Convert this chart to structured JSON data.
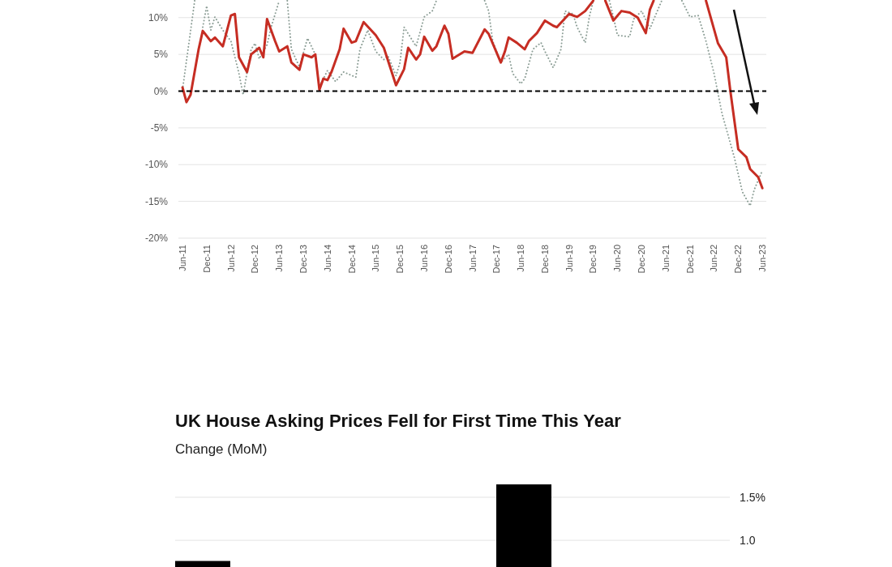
{
  "chart_data": [
    {
      "type": "line",
      "xlim": [
        "2011-05",
        "2023-07"
      ],
      "ylim": [
        -20,
        12.4
      ],
      "xticks": [
        {
          "value": "2011-06",
          "label": "Jun-11"
        },
        {
          "value": "2011-12",
          "label": "Dec-11"
        },
        {
          "value": "2012-06",
          "label": "Jun-12"
        },
        {
          "value": "2012-12",
          "label": "Dec-12"
        },
        {
          "value": "2013-06",
          "label": "Jun-13"
        },
        {
          "value": "2013-12",
          "label": "Dec-13"
        },
        {
          "value": "2014-06",
          "label": "Jun-14"
        },
        {
          "value": "2014-12",
          "label": "Dec-14"
        },
        {
          "value": "2015-06",
          "label": "Jun-15"
        },
        {
          "value": "2015-12",
          "label": "Dec-15"
        },
        {
          "value": "2016-06",
          "label": "Jun-16"
        },
        {
          "value": "2016-12",
          "label": "Dec-16"
        },
        {
          "value": "2017-06",
          "label": "Jun-17"
        },
        {
          "value": "2017-12",
          "label": "Dec-17"
        },
        {
          "value": "2018-06",
          "label": "Jun-18"
        },
        {
          "value": "2018-12",
          "label": "Dec-18"
        },
        {
          "value": "2019-06",
          "label": "Jun-19"
        },
        {
          "value": "2019-12",
          "label": "Dec-19"
        },
        {
          "value": "2020-06",
          "label": "Jun-20"
        },
        {
          "value": "2020-12",
          "label": "Dec-20"
        },
        {
          "value": "2021-06",
          "label": "Jun-21"
        },
        {
          "value": "2021-12",
          "label": "Dec-21"
        },
        {
          "value": "2022-06",
          "label": "Jun-22"
        },
        {
          "value": "2022-12",
          "label": "Dec-22"
        },
        {
          "value": "2023-06",
          "label": "Jun-23"
        }
      ],
      "yticks": [
        {
          "value": -20,
          "label": "-20%"
        },
        {
          "value": -15,
          "label": "-15%"
        },
        {
          "value": -10,
          "label": "-10%"
        },
        {
          "value": -5,
          "label": "-5%"
        },
        {
          "value": 0,
          "label": "0%"
        },
        {
          "value": 5,
          "label": "5%"
        },
        {
          "value": 10,
          "label": "10%"
        }
      ],
      "grid": "y",
      "ref_lines": [
        {
          "axis": "y",
          "value": 0,
          "color": "#000000",
          "line_style": "dashed"
        }
      ],
      "series": [
        {
          "color": "#8c9e96",
          "line_style": "dotted",
          "x": [
            "2011-06",
            "2011-09",
            "2011-10",
            "2011-11",
            "2011-12",
            "2012-01",
            "2012-02",
            "2012-04",
            "2012-06",
            "2012-08",
            "2012-09",
            "2012-11",
            "2012-12",
            "2013-01",
            "2013-03",
            "2013-04",
            "2013-06",
            "2013-07",
            "2013-08",
            "2013-09",
            "2013-11",
            "2014-01",
            "2014-03",
            "2014-04",
            "2014-06",
            "2014-08",
            "2014-10",
            "2015-01",
            "2015-02",
            "2015-04",
            "2015-06",
            "2015-08",
            "2015-09",
            "2015-11",
            "2015-12",
            "2016-01",
            "2016-04",
            "2016-06",
            "2016-08",
            "2016-09",
            "2016-10",
            "2017-09",
            "2017-10",
            "2017-11",
            "2018-01",
            "2018-03",
            "2018-04",
            "2018-06",
            "2018-07",
            "2018-09",
            "2018-11",
            "2018-12",
            "2019-02",
            "2019-04",
            "2019-05",
            "2019-07",
            "2019-08",
            "2019-10",
            "2019-11",
            "2019-12",
            "2020-01",
            "2020-04",
            "2020-05",
            "2020-06",
            "2020-09",
            "2020-10",
            "2020-12",
            "2021-02",
            "2021-05",
            "2021-06",
            "2021-10",
            "2021-12",
            "2022-02",
            "2022-04",
            "2022-06",
            "2022-08",
            "2022-11",
            "2023-01",
            "2023-03",
            "2023-04",
            "2023-06"
          ],
          "values": [
            0.2,
            12.3,
            null,
            8.7,
            11.6,
            8.3,
            10.1,
            8.3,
            6.8,
            2.4,
            -0.5,
            5.7,
            6.5,
            4.4,
            6.3,
            8.7,
            12.3,
            null,
            12.3,
            5.7,
            3.3,
            7.2,
            5.0,
            0.6,
            2.8,
            1.3,
            2.6,
            1.9,
            5.7,
            8.3,
            5.4,
            4.3,
            4.8,
            2.1,
            3.9,
            8.7,
            6.1,
            10.1,
            10.9,
            12.3,
            null,
            12.3,
            10.9,
            6.8,
            3.9,
            5.0,
            2.4,
            1.0,
            1.7,
            5.7,
            6.6,
            5.4,
            3.2,
            5.7,
            10.9,
            10.5,
            8.7,
            6.6,
            10.1,
            12.3,
            null,
            12.3,
            10.1,
            7.6,
            7.4,
            9.8,
            10.9,
            8.5,
            12.3,
            null,
            12.3,
            10.1,
            10.3,
            6.8,
            2.4,
            -3.1,
            -9.0,
            -13.7,
            -15.6,
            -13.4,
            -10.8
          ]
        },
        {
          "color": "#c62d23",
          "line_style": "solid",
          "x": [
            "2011-06",
            "2011-07",
            "2011-08",
            "2011-10",
            "2011-11",
            "2012-01",
            "2012-02",
            "2012-04",
            "2012-06",
            "2012-07",
            "2012-08",
            "2012-10",
            "2012-11",
            "2013-01",
            "2013-02",
            "2013-03",
            "2013-05",
            "2013-06",
            "2013-08",
            "2013-09",
            "2013-11",
            "2013-12",
            "2014-02",
            "2014-03",
            "2014-04",
            "2014-05",
            "2014-06",
            "2014-07",
            "2014-09",
            "2014-10",
            "2014-12",
            "2015-01",
            "2015-03",
            "2015-06",
            "2015-08",
            "2015-11",
            "2016-01",
            "2016-02",
            "2016-04",
            "2016-05",
            "2016-06",
            "2016-08",
            "2016-09",
            "2016-11",
            "2016-12",
            "2017-01",
            "2017-04",
            "2017-06",
            "2017-09",
            "2017-10",
            "2018-01",
            "2018-02",
            "2018-03",
            "2018-05",
            "2018-07",
            "2018-08",
            "2018-10",
            "2018-12",
            "2019-02",
            "2019-03",
            "2019-06",
            "2019-08",
            "2019-10",
            "2019-12",
            "2020-01",
            "2020-03",
            "2020-05",
            "2020-07",
            "2020-09",
            "2020-11",
            "2021-01",
            "2021-02",
            "2021-03",
            "2021-04",
            "2022-04",
            "2022-07",
            "2022-09",
            "2022-10",
            "2022-12",
            "2023-02",
            "2023-03",
            "2023-05",
            "2023-06"
          ],
          "values": [
            0.5,
            -1.5,
            -0.5,
            5.7,
            8.2,
            6.8,
            7.3,
            6.1,
            10.3,
            10.5,
            4.6,
            2.6,
            5.0,
            5.9,
            4.6,
            9.8,
            6.8,
            5.4,
            6.1,
            3.9,
            2.9,
            5.0,
            4.6,
            5.0,
            0.2,
            1.7,
            1.5,
            2.6,
            5.7,
            8.5,
            6.6,
            6.8,
            9.4,
            7.6,
            5.9,
            0.8,
            3.0,
            5.9,
            4.3,
            5.0,
            7.4,
            5.5,
            6.1,
            8.9,
            7.8,
            4.4,
            5.4,
            5.2,
            8.4,
            7.8,
            3.9,
            5.4,
            7.3,
            6.6,
            5.7,
            6.8,
            7.9,
            9.6,
            8.9,
            8.7,
            10.5,
            10.1,
            10.9,
            12.3,
            null,
            12.3,
            9.6,
            10.9,
            10.7,
            10.0,
            7.9,
            11.1,
            12.3,
            null,
            12.3,
            6.5,
            4.6,
            0.2,
            -7.9,
            -9.0,
            -10.6,
            -11.7,
            -13.2
          ]
        }
      ]
    },
    {
      "type": "bar",
      "title": "UK House Asking Prices Fell for First Time This Year",
      "subtitle": "Change (MoM)",
      "categories": [
        null,
        null,
        null,
        null,
        null
      ],
      "values": [
        0.76,
        null,
        null,
        1.65,
        null
      ],
      "color": "#000000",
      "ylim": [
        0.69,
        1.65
      ],
      "yticks": [
        {
          "value": 1.0,
          "label": "1.0"
        },
        {
          "value": 1.5,
          "label": "1.5%"
        }
      ],
      "grid": "y",
      "tick_labels": "y"
    }
  ]
}
